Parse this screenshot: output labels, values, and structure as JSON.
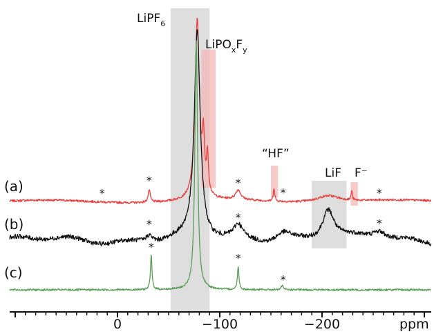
{
  "chart_data": {
    "type": "line",
    "xlabel": "ppm",
    "x_axis": {
      "reversed": true,
      "range": [
        107,
        -222
      ],
      "ticks": [
        0,
        -100,
        -200
      ],
      "tick_labels": [
        "0",
        "−100",
        "−200"
      ]
    },
    "y_axis": {
      "shown": false
    },
    "grid": false,
    "region_labels": {
      "lipf6": {
        "main": "LiPF",
        "sub": "6"
      },
      "lipoxfy": {
        "p1": "LiPO",
        "s1": "x",
        "p2": "F",
        "s2": "y"
      },
      "hf": "“HF”",
      "lif": "LiF",
      "fminus": "F⁻"
    },
    "highlight_regions": [
      {
        "label": "LiPF6",
        "from": -52,
        "to": -90,
        "color": "#d8d8d8"
      },
      {
        "label": "LiPOxFy",
        "from": -82,
        "to": -96,
        "color": "#f4b8b8"
      },
      {
        "label": "HF",
        "from": -150,
        "to": -157,
        "color": "#f4b8b8"
      },
      {
        "label": "LiF",
        "from": -190,
        "to": -224,
        "color": "#d8d8d8"
      },
      {
        "label": "F-",
        "from": -228,
        "to": -235,
        "color": "#f4b8b8"
      }
    ],
    "spinning_sideband_marker": "*",
    "series": [
      {
        "name": "(a)",
        "color": "#e8403e",
        "peaks": [
          {
            "ppm": 31,
            "height": 18,
            "width": 1.2
          },
          {
            "ppm": 78,
            "height": 260,
            "width": 2.5
          },
          {
            "ppm": 84,
            "height": 75,
            "width": 1.3
          },
          {
            "ppm": 88,
            "height": 55,
            "width": 1.2
          },
          {
            "ppm": 118,
            "height": 14,
            "width": 3
          },
          {
            "ppm": 153,
            "height": 20,
            "width": 0.8
          },
          {
            "ppm": 206,
            "height": 10,
            "width": 14
          },
          {
            "ppm": 229,
            "height": 14,
            "width": 0.7
          }
        ],
        "sidebands": [
          -15,
          31,
          118,
          162,
          256
        ]
      },
      {
        "name": "(b)",
        "color": "#111111",
        "peaks": [
          {
            "ppm": 31,
            "height": 10,
            "width": 4
          },
          {
            "ppm": 78,
            "height": 300,
            "width": 3.5
          },
          {
            "ppm": 118,
            "height": 18,
            "width": 5
          },
          {
            "ppm": 162,
            "height": 14,
            "width": 10
          },
          {
            "ppm": 206,
            "height": 45,
            "width": 7
          },
          {
            "ppm": 256,
            "height": 12,
            "width": 8
          }
        ],
        "sidebands": [
          31,
          118,
          256
        ]
      },
      {
        "name": "(c)",
        "color": "#5a9e5a",
        "peaks": [
          {
            "ppm": 33,
            "height": 50,
            "width": 0.9
          },
          {
            "ppm": 77,
            "height": 360,
            "width": 1.6
          },
          {
            "ppm": 118,
            "height": 34,
            "width": 0.9
          },
          {
            "ppm": 161,
            "height": 6,
            "width": 1.2
          }
        ],
        "sidebands": [
          33,
          118,
          162
        ]
      }
    ]
  }
}
